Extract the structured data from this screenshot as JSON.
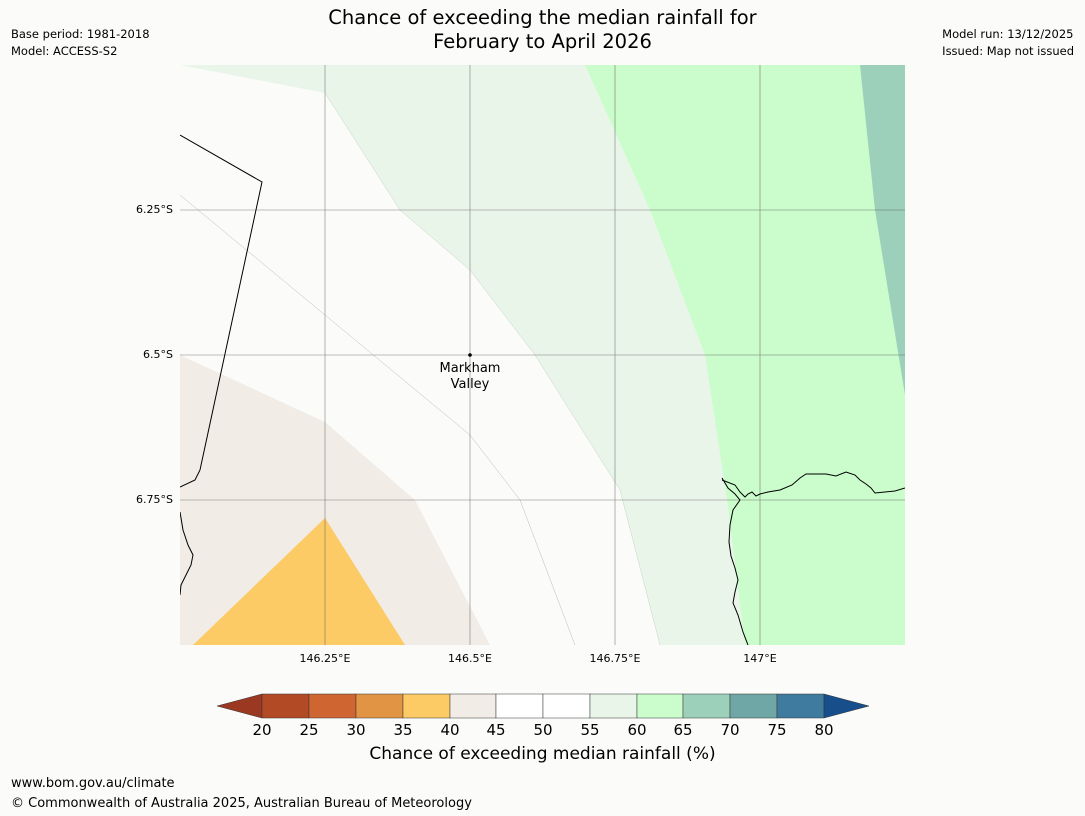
{
  "header": {
    "title_line1": "Chance of exceeding the median rainfall for",
    "title_line2": "February to April 2026",
    "base_period": "Base period: 1981-2018",
    "model": "Model: ACCESS-S2",
    "model_run": "Model run: 13/12/2025",
    "issued": "Issued: Map not issued"
  },
  "map": {
    "lat_labels": [
      "6.25°S",
      "6.5°S",
      "6.75°S"
    ],
    "lon_labels": [
      "146.25°E",
      "146.5°E",
      "146.75°E",
      "147°E"
    ],
    "place": {
      "name_line1": "Markham",
      "name_line2": "Valley"
    }
  },
  "legend": {
    "title": "Chance of exceeding median rainfall (%)",
    "ticks": [
      "20",
      "25",
      "30",
      "35",
      "40",
      "45",
      "50",
      "55",
      "60",
      "65",
      "70",
      "75",
      "80"
    ],
    "colors": {
      "below_20": "#9b3822",
      "20_25": "#b34a26",
      "25_30": "#cf6632",
      "30_35": "#e19444",
      "35_40": "#fdcb66",
      "40_45": "#f1ece6",
      "45_50": "#ffffff",
      "50_55": "#ffffff",
      "55_60": "#eaf5ea",
      "60_65": "#cbfccb",
      "65_70": "#9dd0ba",
      "70_75": "#6fa6a6",
      "75_80": "#3f7b9e",
      "above_80": "#164f8c"
    }
  },
  "footer": {
    "url": "www.bom.gov.au/climate",
    "copyright": "© Commonwealth of Australia 2025, Australian Bureau of Meteorology"
  }
}
